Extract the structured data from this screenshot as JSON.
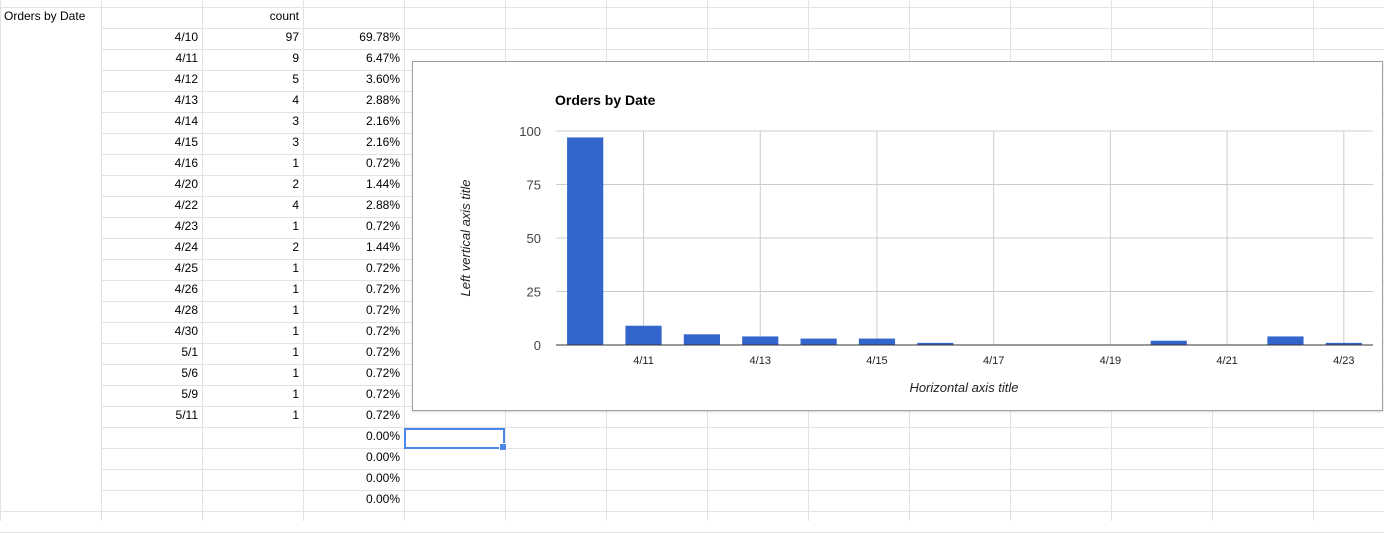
{
  "sheet": {
    "header": {
      "title": "Orders by Date",
      "count_header": "count"
    },
    "rows": [
      {
        "date": "4/10",
        "count": "97",
        "pct": "69.78%"
      },
      {
        "date": "4/11",
        "count": "9",
        "pct": "6.47%"
      },
      {
        "date": "4/12",
        "count": "5",
        "pct": "3.60%"
      },
      {
        "date": "4/13",
        "count": "4",
        "pct": "2.88%"
      },
      {
        "date": "4/14",
        "count": "3",
        "pct": "2.16%"
      },
      {
        "date": "4/15",
        "count": "3",
        "pct": "2.16%"
      },
      {
        "date": "4/16",
        "count": "1",
        "pct": "0.72%"
      },
      {
        "date": "4/20",
        "count": "2",
        "pct": "1.44%"
      },
      {
        "date": "4/22",
        "count": "4",
        "pct": "2.88%"
      },
      {
        "date": "4/23",
        "count": "1",
        "pct": "0.72%"
      },
      {
        "date": "4/24",
        "count": "2",
        "pct": "1.44%"
      },
      {
        "date": "4/25",
        "count": "1",
        "pct": "0.72%"
      },
      {
        "date": "4/26",
        "count": "1",
        "pct": "0.72%"
      },
      {
        "date": "4/28",
        "count": "1",
        "pct": "0.72%"
      },
      {
        "date": "4/30",
        "count": "1",
        "pct": "0.72%"
      },
      {
        "date": "5/1",
        "count": "1",
        "pct": "0.72%"
      },
      {
        "date": "5/6",
        "count": "1",
        "pct": "0.72%"
      },
      {
        "date": "5/9",
        "count": "1",
        "pct": "0.72%"
      },
      {
        "date": "5/11",
        "count": "1",
        "pct": "0.72%"
      },
      {
        "date": "",
        "count": "",
        "pct": "0.00%"
      },
      {
        "date": "",
        "count": "",
        "pct": "0.00%"
      },
      {
        "date": "",
        "count": "",
        "pct": "0.00%"
      },
      {
        "date": "",
        "count": "",
        "pct": "0.00%"
      }
    ]
  },
  "colors": {
    "bar": "#3366cc",
    "selection": "#4a86e8"
  },
  "chart_data": {
    "type": "bar",
    "title": "Orders by Date",
    "xlabel": "Horizontal axis title",
    "ylabel": "Left vertical axis title",
    "ylim": [
      0,
      100
    ],
    "yticks": [
      0,
      25,
      50,
      75,
      100
    ],
    "xlim": [
      "4/10",
      "4/23"
    ],
    "xticks": [
      "4/11",
      "4/13",
      "4/15",
      "4/17",
      "4/19",
      "4/21",
      "4/23"
    ],
    "x": [
      "4/10",
      "4/11",
      "4/12",
      "4/13",
      "4/14",
      "4/15",
      "4/16",
      "4/20",
      "4/22",
      "4/23"
    ],
    "values": [
      97,
      9,
      5,
      4,
      3,
      3,
      1,
      2,
      4,
      1
    ],
    "grid": true,
    "legend": "none"
  }
}
